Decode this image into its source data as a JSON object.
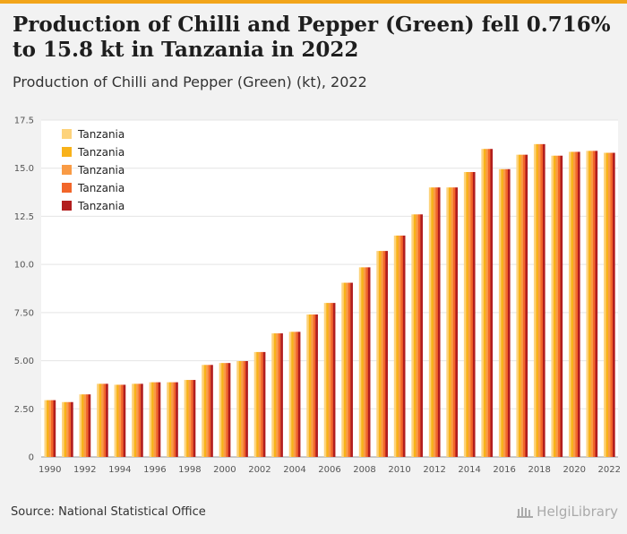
{
  "title": "Production of Chilli and Pepper (Green) fell 0.716% to 15.8 kt in Tanzania in 2022",
  "subtitle": "Production of Chilli and Pepper (Green) (kt), 2022",
  "source": "Source: National Statistical Office",
  "logo": "HelgiLibrary",
  "colors": {
    "accent": "#f2a51a",
    "series": [
      "#fdd37c",
      "#f8b21a",
      "#f99b45",
      "#f2662a",
      "#b21e1e"
    ]
  },
  "chart_data": {
    "type": "bar",
    "categories": [
      "1990",
      "1991",
      "1992",
      "1993",
      "1994",
      "1995",
      "1996",
      "1997",
      "1998",
      "1999",
      "2000",
      "2001",
      "2002",
      "2003",
      "2004",
      "2005",
      "2006",
      "2007",
      "2008",
      "2009",
      "2010",
      "2011",
      "2012",
      "2013",
      "2014",
      "2015",
      "2016",
      "2017",
      "2018",
      "2019",
      "2020",
      "2021",
      "2022"
    ],
    "x_tick_labels": [
      "1990",
      "1992",
      "1994",
      "1996",
      "1998",
      "2000",
      "2002",
      "2004",
      "2006",
      "2008",
      "2010",
      "2012",
      "2014",
      "2016",
      "2018",
      "2020",
      "2022"
    ],
    "y_tick_labels": [
      "0",
      "2.50",
      "5.00",
      "7.50",
      "10.0",
      "12.5",
      "15.0",
      "17.5"
    ],
    "ylim": [
      0,
      17.5
    ],
    "y_ticks": [
      0,
      2.5,
      5,
      7.5,
      10,
      12.5,
      15,
      17.5
    ],
    "grid": true,
    "legend_position": "top-left",
    "values": [
      2.95,
      2.85,
      3.25,
      3.8,
      3.75,
      3.8,
      3.88,
      3.88,
      4.0,
      4.78,
      4.88,
      4.98,
      5.45,
      6.42,
      6.5,
      7.4,
      8.0,
      9.05,
      9.85,
      10.7,
      11.5,
      12.6,
      14.0,
      14.0,
      14.8,
      16.0,
      14.95,
      15.7,
      16.25,
      15.65,
      15.85,
      15.9,
      15.8
    ],
    "series": [
      {
        "name": "Tanzania"
      },
      {
        "name": "Tanzania"
      },
      {
        "name": "Tanzania"
      },
      {
        "name": "Tanzania"
      },
      {
        "name": "Tanzania"
      }
    ]
  }
}
